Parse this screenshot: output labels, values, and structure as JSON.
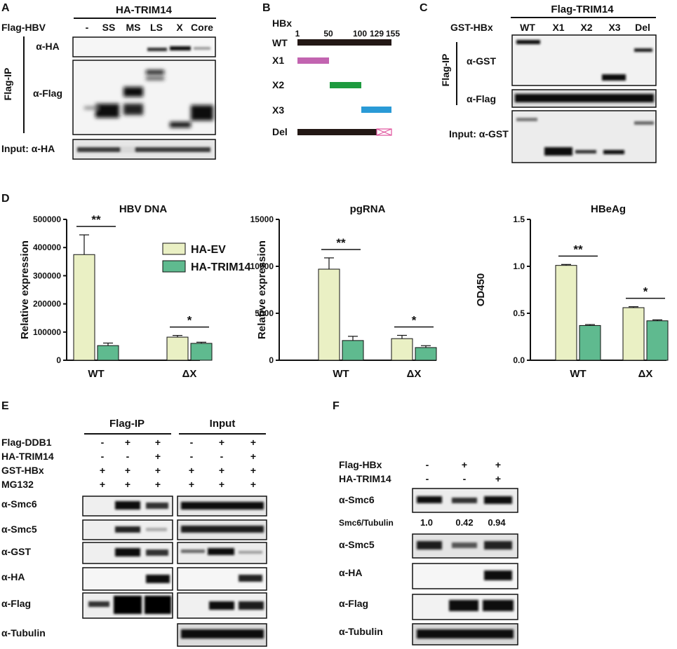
{
  "panelA": {
    "letter": "A",
    "header": "HA-TRIM14",
    "row_label": "Flag-HBV",
    "lanes": [
      "-",
      "SS",
      "MS",
      "LS",
      "X",
      "Core"
    ],
    "side_label": "Flag-IP",
    "blots": [
      "α-HA",
      "α-Flag"
    ],
    "input_label": "Input: α-HA"
  },
  "panelB": {
    "letter": "B",
    "title": "HBx",
    "ticks": [
      "1",
      "50",
      "100",
      "129",
      "155"
    ],
    "constructs": [
      "WT",
      "X1",
      "X2",
      "X3",
      "Del"
    ],
    "colors": {
      "wt": "#231815",
      "x1": "#c264b0",
      "x2": "#1e9b3f",
      "x3": "#2a9ad6",
      "del_box": "#e0529c"
    }
  },
  "panelC": {
    "letter": "C",
    "header": "Flag-TRIM14",
    "row_label": "GST-HBx",
    "lanes": [
      "WT",
      "X1",
      "X2",
      "X3",
      "Del"
    ],
    "side_label": "Flag-IP",
    "blots": [
      "α-GST",
      "α-Flag"
    ],
    "input_label": "Input: α-GST"
  },
  "panelD": {
    "letter": "D",
    "legend": [
      "HA-EV",
      "HA-TRIM14"
    ],
    "colors": {
      "ev": "#eaf0c4",
      "trim14": "#5fba8f"
    }
  },
  "chart_data": [
    {
      "type": "bar",
      "title": "HBV DNA",
      "ylabel": "Relative expression",
      "categories": [
        "WT",
        "ΔX"
      ],
      "ylim": [
        0,
        500000
      ],
      "yticks": [
        "0",
        "100000",
        "200000",
        "300000",
        "400000",
        "500000"
      ],
      "series": [
        {
          "name": "HA-EV",
          "values": [
            375000,
            82000
          ],
          "errors": [
            70000,
            6000
          ]
        },
        {
          "name": "HA-TRIM14",
          "values": [
            52000,
            60000
          ],
          "errors": [
            9000,
            4000
          ]
        }
      ],
      "significance": [
        "**",
        "*"
      ]
    },
    {
      "type": "bar",
      "title": "pgRNA",
      "ylabel": "Relative expression",
      "categories": [
        "WT",
        "ΔX"
      ],
      "ylim": [
        0,
        15000
      ],
      "yticks": [
        "0",
        "5000",
        "10000",
        "15000"
      ],
      "series": [
        {
          "name": "HA-EV",
          "values": [
            9700,
            2300
          ],
          "errors": [
            1200,
            350
          ]
        },
        {
          "name": "HA-TRIM14",
          "values": [
            2100,
            1350
          ],
          "errors": [
            450,
            200
          ]
        }
      ],
      "significance": [
        "**",
        "*"
      ]
    },
    {
      "type": "bar",
      "title": "HBeAg",
      "ylabel": "OD450",
      "categories": [
        "WT",
        "ΔX"
      ],
      "ylim": [
        0,
        1.5
      ],
      "yticks": [
        "0.0",
        "0.5",
        "1.0",
        "1.5"
      ],
      "series": [
        {
          "name": "HA-EV",
          "values": [
            1.01,
            0.56
          ],
          "errors": [
            0.01,
            0.01
          ]
        },
        {
          "name": "HA-TRIM14",
          "values": [
            0.37,
            0.42
          ],
          "errors": [
            0.01,
            0.01
          ]
        }
      ],
      "significance": [
        "**",
        "*"
      ]
    }
  ],
  "panelE": {
    "letter": "E",
    "group_headers": [
      "Flag-IP",
      "Input"
    ],
    "conditions": [
      {
        "label": "Flag-DDB1",
        "signs": [
          "-",
          "+",
          "+",
          "-",
          "+",
          "+"
        ]
      },
      {
        "label": "HA-TRIM14",
        "signs": [
          "-",
          "-",
          "+",
          "-",
          "-",
          "+"
        ]
      },
      {
        "label": "GST-HBx",
        "signs": [
          "+",
          "+",
          "+",
          "+",
          "+",
          "+"
        ]
      },
      {
        "label": "MG132",
        "signs": [
          "+",
          "+",
          "+",
          "+",
          "+",
          "+"
        ]
      }
    ],
    "blots": [
      "α-Smc6",
      "α-Smc5",
      "α-GST",
      "α-HA",
      "α-Flag",
      "α-Tubulin"
    ]
  },
  "panelF": {
    "letter": "F",
    "conditions": [
      {
        "label": "Flag-HBx",
        "signs": [
          "-",
          "+",
          "+"
        ]
      },
      {
        "label": "HA-TRIM14",
        "signs": [
          "-",
          "-",
          "+"
        ]
      }
    ],
    "blots": [
      "α-Smc6",
      "α-Smc5",
      "α-HA",
      "α-Flag",
      "α-Tubulin"
    ],
    "ratio_label": "Smc6/Tubulin",
    "ratio_values": [
      "1.0",
      "0.42",
      "0.94"
    ]
  }
}
